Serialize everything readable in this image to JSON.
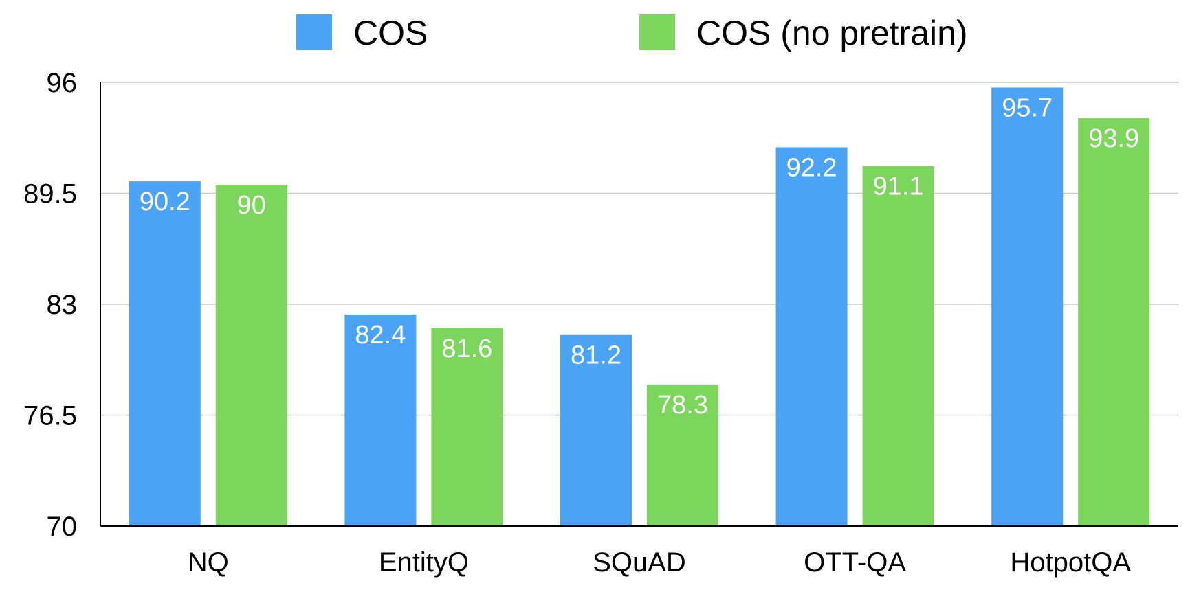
{
  "chart_data": {
    "type": "bar",
    "title": "",
    "xlabel": "",
    "ylabel": "",
    "categories": [
      "NQ",
      "EntityQ",
      "SQuAD",
      "OTT-QA",
      "HotpotQA"
    ],
    "series": [
      {
        "name": "COS",
        "color": "#4BA3F5",
        "values": [
          90.2,
          82.4,
          81.2,
          92.2,
          95.7
        ],
        "labels": [
          "90.2",
          "82.4",
          "81.2",
          "92.2",
          "95.7"
        ]
      },
      {
        "name": "COS (no pretrain)",
        "color": "#7DD65C",
        "values": [
          90,
          81.6,
          78.3,
          91.1,
          93.9
        ],
        "labels": [
          "90",
          "81.6",
          "78.3",
          "91.1",
          "93.9"
        ]
      }
    ],
    "ylim": [
      70,
      96
    ],
    "yticks": [
      "70",
      "76.5",
      "83",
      "89.5",
      "96"
    ],
    "grid": true,
    "legend": "top-center"
  }
}
